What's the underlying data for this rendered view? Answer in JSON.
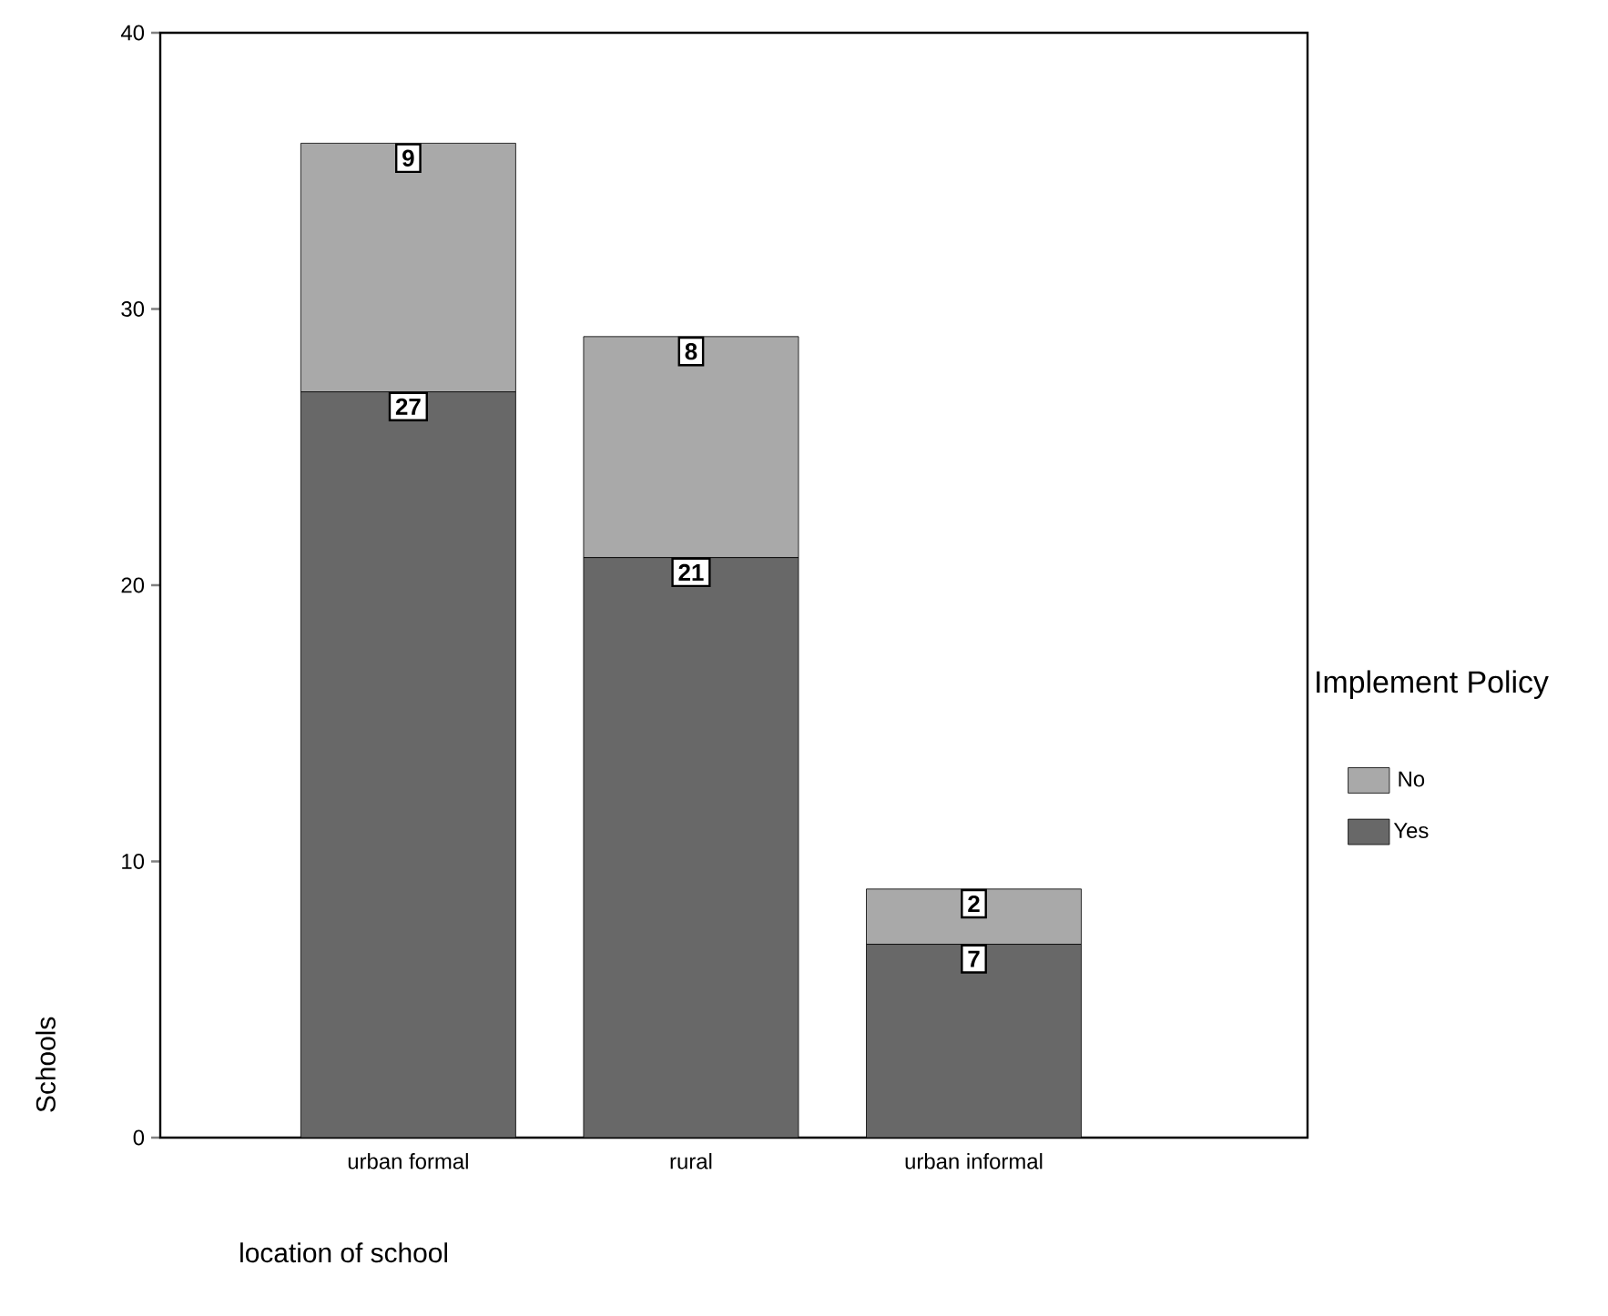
{
  "chart_data": {
    "type": "bar",
    "stacked": true,
    "xlabel": "location of school",
    "ylabel": "Schools",
    "legend_title": "Implement Policy",
    "categories": [
      "urban formal",
      "rural",
      "urban informal"
    ],
    "series": [
      {
        "name": "Yes",
        "color": "#686868",
        "values": [
          27,
          21,
          7
        ],
        "value_labels": [
          "27",
          "21",
          "7"
        ]
      },
      {
        "name": "No",
        "color": "#a9a9a9",
        "values": [
          9,
          8,
          2
        ],
        "value_labels": [
          "9",
          "8",
          "2"
        ]
      }
    ],
    "ylim": [
      0,
      40
    ],
    "yticks": [
      0,
      10,
      20,
      30,
      40
    ],
    "grid": false,
    "legend": "right"
  }
}
